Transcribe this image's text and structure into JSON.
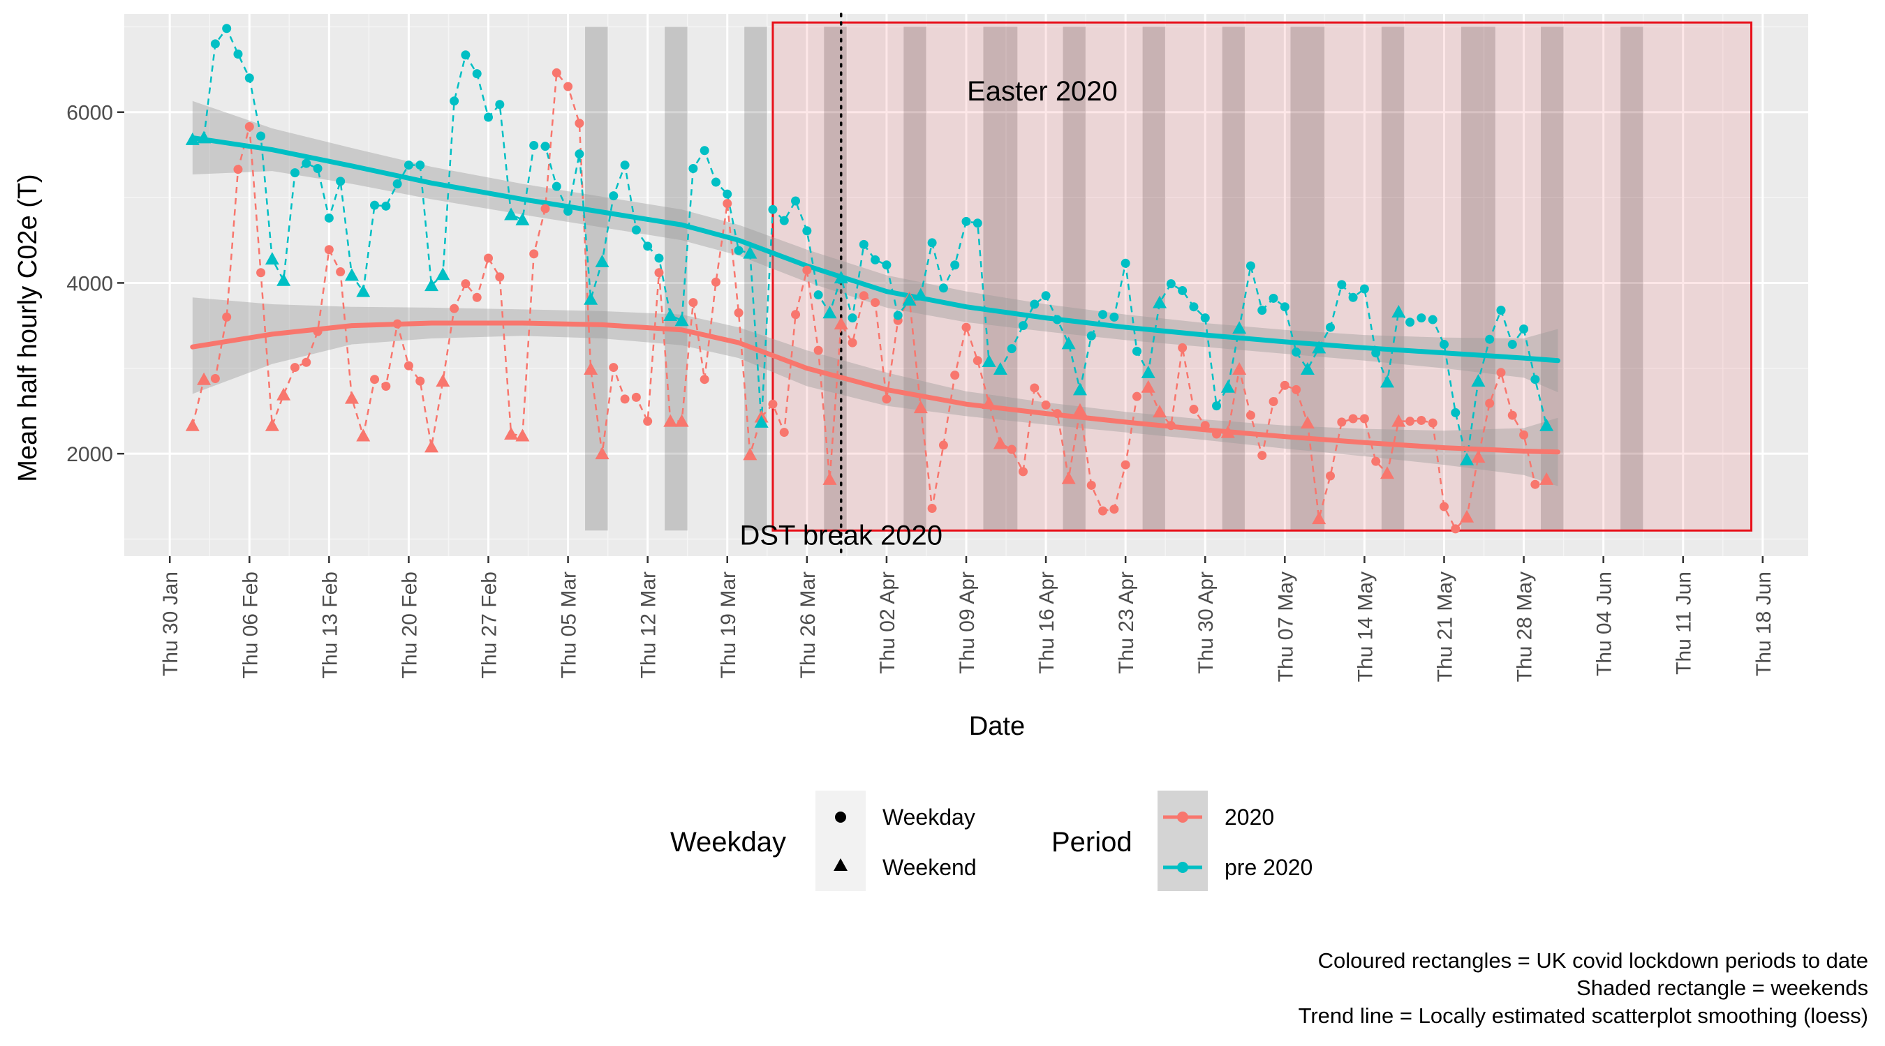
{
  "chart_data": {
    "type": "line",
    "title": "",
    "xlabel": "Date",
    "ylabel": "Mean half hourly C02e (T)",
    "ylim": [
      800,
      7150
    ],
    "xlim": [
      "2020-01-26",
      "2020-06-22"
    ],
    "y_ticks": [
      2000,
      4000,
      6000
    ],
    "x_ticks": [
      {
        "date": "2020-01-30",
        "label": "Thu 30 Jan"
      },
      {
        "date": "2020-02-06",
        "label": "Thu 06 Feb"
      },
      {
        "date": "2020-02-13",
        "label": "Thu 13 Feb"
      },
      {
        "date": "2020-02-20",
        "label": "Thu 20 Feb"
      },
      {
        "date": "2020-02-27",
        "label": "Thu 27 Feb"
      },
      {
        "date": "2020-03-05",
        "label": "Thu 05 Mar"
      },
      {
        "date": "2020-03-12",
        "label": "Thu 12 Mar"
      },
      {
        "date": "2020-03-19",
        "label": "Thu 19 Mar"
      },
      {
        "date": "2020-03-26",
        "label": "Thu 26 Mar"
      },
      {
        "date": "2020-04-02",
        "label": "Thu 02 Apr"
      },
      {
        "date": "2020-04-09",
        "label": "Thu 09 Apr"
      },
      {
        "date": "2020-04-16",
        "label": "Thu 16 Apr"
      },
      {
        "date": "2020-04-23",
        "label": "Thu 23 Apr"
      },
      {
        "date": "2020-04-30",
        "label": "Thu 30 Apr"
      },
      {
        "date": "2020-05-07",
        "label": "Thu 07 May"
      },
      {
        "date": "2020-05-14",
        "label": "Thu 14 May"
      },
      {
        "date": "2020-05-21",
        "label": "Thu 21 May"
      },
      {
        "date": "2020-05-28",
        "label": "Thu 28 May"
      },
      {
        "date": "2020-06-04",
        "label": "Thu 04 Jun"
      },
      {
        "date": "2020-06-11",
        "label": "Thu 11 Jun"
      },
      {
        "date": "2020-06-18",
        "label": "Thu 18 Jun"
      }
    ],
    "grid": true,
    "legend_position": "bottom",
    "colors": {
      "2020": "#f8766d",
      "pre 2020": "#00bfc4",
      "lockdown": "#e8101a",
      "panel": "#ebebeb"
    },
    "weekends": [
      [
        "2020-03-07",
        "2020-03-08"
      ],
      [
        "2020-03-14",
        "2020-03-15"
      ],
      [
        "2020-03-21",
        "2020-03-22"
      ],
      [
        "2020-03-28",
        "2020-03-29"
      ],
      [
        "2020-04-04",
        "2020-04-05"
      ],
      [
        "2020-04-11",
        "2020-04-13"
      ],
      [
        "2020-04-18",
        "2020-04-19"
      ],
      [
        "2020-04-25",
        "2020-04-26"
      ],
      [
        "2020-05-02",
        "2020-05-03"
      ],
      [
        "2020-05-08",
        "2020-05-10"
      ],
      [
        "2020-05-16",
        "2020-05-17"
      ],
      [
        "2020-05-23",
        "2020-05-25"
      ],
      [
        "2020-05-30",
        "2020-05-31"
      ],
      [
        "2020-06-06",
        "2020-06-07"
      ]
    ],
    "weekend_band_y": [
      1100,
      7000
    ],
    "lockdown_periods": [
      {
        "start": "2020-03-23",
        "end": "2020-06-17",
        "y": [
          1100,
          7050
        ]
      }
    ],
    "vlines": [
      {
        "date": "2020-03-29",
        "style": "dotted"
      }
    ],
    "annotations": [
      {
        "text": "Easter 2020",
        "date": "2020-04-06",
        "y": 6250
      },
      {
        "text": "DST break 2020",
        "date": "2020-03-29",
        "y": 1050
      }
    ],
    "series": [
      {
        "name": "2020",
        "color": "#f8766d",
        "x_start": "2020-02-01",
        "values": [
          2330,
          2870,
          2880,
          3600,
          5330,
          5830,
          4120,
          2330,
          2690,
          3010,
          3070,
          3430,
          4390,
          4130,
          2650,
          2210,
          2870,
          2790,
          3520,
          3030,
          2850,
          2080,
          2850,
          3700,
          3990,
          3830,
          4290,
          4070,
          2230,
          2210,
          4340,
          4870,
          6460,
          6300,
          5870,
          2990,
          2000,
          3010,
          2640,
          2660,
          2380,
          4120,
          2380,
          2380,
          3770,
          2870,
          4010,
          4930,
          3650,
          1990,
          2430,
          2580,
          2250,
          3630,
          4150,
          3210,
          1700,
          3520,
          3300,
          3850,
          3770,
          2640,
          3560,
          3820,
          2540,
          1360,
          2100,
          2920,
          3480,
          3090,
          2590,
          2120,
          2050,
          1790,
          2770,
          2570,
          2470,
          1710,
          2510,
          1630,
          1330,
          1350,
          1870,
          2670,
          2780,
          2490,
          2330,
          3240,
          2520,
          2330,
          2230,
          2250,
          2990,
          2450,
          1980,
          2610,
          2800,
          2750,
          2360,
          1240,
          1740,
          2370,
          2410,
          2410,
          1910,
          1770,
          2380,
          2380,
          2390,
          2360,
          1380,
          1120,
          1260,
          1960,
          2590,
          2950,
          2450,
          2220,
          1640,
          1700
        ],
        "weekend": [
          true,
          true,
          false,
          false,
          false,
          false,
          false,
          true,
          true,
          false,
          false,
          false,
          false,
          false,
          true,
          true,
          false,
          false,
          false,
          false,
          false,
          true,
          true,
          false,
          false,
          false,
          false,
          false,
          true,
          true,
          false,
          false,
          false,
          false,
          false,
          true,
          true,
          false,
          false,
          false,
          false,
          false,
          true,
          true,
          false,
          false,
          false,
          false,
          false,
          true,
          true,
          false,
          false,
          false,
          false,
          false,
          true,
          true,
          false,
          false,
          false,
          false,
          false,
          true,
          true,
          false,
          false,
          false,
          false,
          false,
          true,
          true,
          false,
          false,
          false,
          false,
          false,
          true,
          true,
          false,
          false,
          false,
          false,
          false,
          true,
          true,
          false,
          false,
          false,
          false,
          false,
          true,
          true,
          false,
          false,
          false,
          false,
          false,
          true,
          true,
          false,
          false,
          false,
          false,
          false,
          true,
          true,
          false,
          false,
          false,
          false,
          false,
          true,
          true,
          false,
          false,
          false,
          false,
          false,
          true,
          true
        ]
      },
      {
        "name": "pre 2020",
        "color": "#00bfc4",
        "x_start": "2020-02-01",
        "values": [
          5680,
          5700,
          6800,
          6980,
          6680,
          6400,
          5720,
          4280,
          4030,
          5290,
          5400,
          5340,
          4760,
          5190,
          4090,
          3900,
          4910,
          4900,
          5160,
          5380,
          5380,
          3970,
          4100,
          6130,
          6670,
          6450,
          5940,
          6090,
          4800,
          4740,
          5610,
          5600,
          5130,
          4840,
          5510,
          3810,
          4250,
          5020,
          5380,
          4620,
          4430,
          4290,
          3620,
          3560,
          5340,
          5550,
          5180,
          5040,
          4380,
          4350,
          2370,
          4860,
          4730,
          4960,
          4610,
          3860,
          3650,
          4060,
          3590,
          4450,
          4270,
          4210,
          3620,
          3800,
          3860,
          4470,
          3940,
          4210,
          4720,
          4700,
          3080,
          2990,
          3230,
          3500,
          3750,
          3850,
          3570,
          3290,
          2750,
          3380,
          3630,
          3600,
          4230,
          3200,
          2950,
          3770,
          3990,
          3910,
          3720,
          3590,
          2560,
          2780,
          3470,
          4200,
          3680,
          3820,
          3720,
          3190,
          2990,
          3240,
          3480,
          3980,
          3830,
          3930,
          3180,
          2840,
          3660,
          3540,
          3590,
          3570,
          3280,
          2480,
          1930,
          2850,
          3340,
          3680,
          3280,
          3460,
          2870,
          2330
        ],
        "weekend": [
          true,
          true,
          false,
          false,
          false,
          false,
          false,
          true,
          true,
          false,
          false,
          false,
          false,
          false,
          true,
          true,
          false,
          false,
          false,
          false,
          false,
          true,
          true,
          false,
          false,
          false,
          false,
          false,
          true,
          true,
          false,
          false,
          false,
          false,
          false,
          true,
          true,
          false,
          false,
          false,
          false,
          false,
          true,
          true,
          false,
          false,
          false,
          false,
          false,
          true,
          true,
          false,
          false,
          false,
          false,
          false,
          true,
          true,
          false,
          false,
          false,
          false,
          false,
          true,
          true,
          false,
          false,
          false,
          false,
          false,
          true,
          true,
          false,
          false,
          false,
          false,
          false,
          true,
          true,
          false,
          false,
          false,
          false,
          false,
          true,
          true,
          false,
          false,
          false,
          false,
          false,
          true,
          true,
          false,
          false,
          false,
          false,
          false,
          true,
          true,
          false,
          false,
          false,
          false,
          false,
          true,
          true,
          false,
          false,
          false,
          false,
          false,
          true,
          true,
          false,
          false,
          false,
          false,
          false,
          true,
          true
        ]
      }
    ],
    "trend": {
      "2020": {
        "color": "#f8766d",
        "points": [
          [
            "2020-02-01",
            3250
          ],
          [
            "2020-02-08",
            3400
          ],
          [
            "2020-02-15",
            3500
          ],
          [
            "2020-02-22",
            3530
          ],
          [
            "2020-03-01",
            3530
          ],
          [
            "2020-03-08",
            3510
          ],
          [
            "2020-03-15",
            3450
          ],
          [
            "2020-03-20",
            3300
          ],
          [
            "2020-03-26",
            3000
          ],
          [
            "2020-04-02",
            2750
          ],
          [
            "2020-04-09",
            2580
          ],
          [
            "2020-04-16",
            2470
          ],
          [
            "2020-04-23",
            2370
          ],
          [
            "2020-04-30",
            2280
          ],
          [
            "2020-05-07",
            2200
          ],
          [
            "2020-05-14",
            2130
          ],
          [
            "2020-05-21",
            2070
          ],
          [
            "2020-05-28",
            2030
          ],
          [
            "2020-05-31",
            2020
          ]
        ],
        "band_low": [
          2700,
          3050,
          3280,
          3350,
          3380,
          3350,
          3270,
          3120,
          2790,
          2560,
          2440,
          2340,
          2250,
          2160,
          2060,
          1970,
          1870,
          1750,
          1620
        ],
        "band_high": [
          3830,
          3750,
          3720,
          3710,
          3690,
          3670,
          3630,
          3480,
          3210,
          2950,
          2730,
          2600,
          2490,
          2400,
          2330,
          2290,
          2270,
          2300,
          2420
        ]
      },
      "pre 2020": {
        "color": "#00bfc4",
        "points": [
          [
            "2020-02-01",
            5700
          ],
          [
            "2020-02-08",
            5560
          ],
          [
            "2020-02-15",
            5370
          ],
          [
            "2020-02-22",
            5170
          ],
          [
            "2020-03-01",
            4980
          ],
          [
            "2020-03-08",
            4830
          ],
          [
            "2020-03-15",
            4680
          ],
          [
            "2020-03-20",
            4500
          ],
          [
            "2020-03-26",
            4200
          ],
          [
            "2020-04-02",
            3900
          ],
          [
            "2020-04-09",
            3720
          ],
          [
            "2020-04-16",
            3590
          ],
          [
            "2020-04-23",
            3480
          ],
          [
            "2020-04-30",
            3390
          ],
          [
            "2020-05-07",
            3310
          ],
          [
            "2020-05-14",
            3240
          ],
          [
            "2020-05-21",
            3180
          ],
          [
            "2020-05-28",
            3120
          ],
          [
            "2020-05-31",
            3090
          ]
        ],
        "band_low": [
          5270,
          5310,
          5160,
          4980,
          4800,
          4650,
          4500,
          4320,
          4010,
          3710,
          3540,
          3430,
          3330,
          3250,
          3170,
          3090,
          3000,
          2890,
          2720
        ],
        "band_high": [
          6130,
          5810,
          5580,
          5360,
          5160,
          5010,
          4860,
          4680,
          4390,
          4090,
          3900,
          3750,
          3630,
          3530,
          3450,
          3390,
          3360,
          3350,
          3460
        ]
      }
    },
    "legend": {
      "weekday_title": "Weekday",
      "weekday_items": [
        "Weekday",
        "Weekend"
      ],
      "period_title": "Period",
      "period_items": [
        "2020",
        "pre 2020"
      ]
    },
    "caption": [
      "Coloured rectangles = UK covid lockdown periods to date",
      "Shaded rectangle = weekends",
      "Trend line = Locally estimated scatterplot smoothing (loess)"
    ]
  }
}
